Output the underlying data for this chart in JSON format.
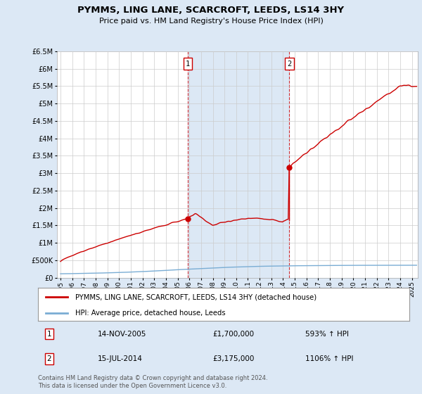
{
  "title": "PYMMS, LING LANE, SCARCROFT, LEEDS, LS14 3HY",
  "subtitle": "Price paid vs. HM Land Registry's House Price Index (HPI)",
  "xlim": [
    1994.7,
    2025.5
  ],
  "ylim": [
    0,
    6500000
  ],
  "yticks": [
    0,
    500000,
    1000000,
    1500000,
    2000000,
    2500000,
    3000000,
    3500000,
    4000000,
    4500000,
    5000000,
    5500000,
    6000000,
    6500000
  ],
  "ytick_labels": [
    "£0",
    "£500K",
    "£1M",
    "£1.5M",
    "£2M",
    "£2.5M",
    "£3M",
    "£3.5M",
    "£4M",
    "£4.5M",
    "£5M",
    "£5.5M",
    "£6M",
    "£6.5M"
  ],
  "xticks": [
    1995,
    1996,
    1997,
    1998,
    1999,
    2000,
    2001,
    2002,
    2003,
    2004,
    2005,
    2006,
    2007,
    2008,
    2009,
    2010,
    2011,
    2012,
    2013,
    2014,
    2015,
    2016,
    2017,
    2018,
    2019,
    2020,
    2021,
    2022,
    2023,
    2024,
    2025
  ],
  "sale1_x": 2005.87,
  "sale1_y": 1700000,
  "sale1_label": "1",
  "sale1_date": "14-NOV-2005",
  "sale1_price": "£1,700,000",
  "sale1_hpi": "593% ↑ HPI",
  "sale2_x": 2014.54,
  "sale2_y": 3175000,
  "sale2_label": "2",
  "sale2_date": "15-JUL-2014",
  "sale2_price": "£3,175,000",
  "sale2_hpi": "1106% ↑ HPI",
  "property_color": "#cc0000",
  "hpi_color": "#7aadd4",
  "property_line_label": "PYMMS, LING LANE, SCARCROFT, LEEDS, LS14 3HY (detached house)",
  "hpi_line_label": "HPI: Average price, detached house, Leeds",
  "footnote": "Contains HM Land Registry data © Crown copyright and database right 2024.\nThis data is licensed under the Open Government Licence v3.0.",
  "background_color": "#dce8f5",
  "plot_bg_color": "#ffffff",
  "shade_color": "#dce8f5",
  "grid_color": "#cccccc"
}
